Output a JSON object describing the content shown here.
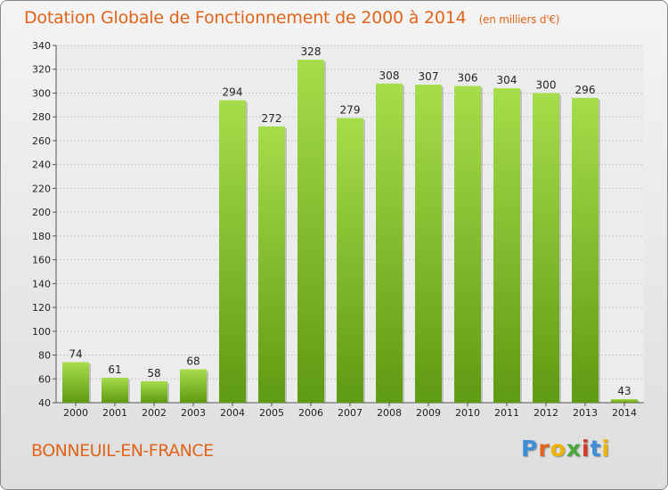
{
  "header": {
    "title": "Dotation Globale de Fonctionnement de 2000 à 2014",
    "unit": "(en milliers d'€)"
  },
  "commune": "BONNEUIL-EN-FRANCE",
  "logo": {
    "letters": [
      "P",
      "r",
      "o",
      "x",
      "i",
      "t",
      "i"
    ],
    "colors": [
      "#3b8fd8",
      "#e0641a",
      "#f0b400",
      "#4aa838",
      "#d23a2a",
      "#3b8fd8",
      "#f0b400"
    ]
  },
  "colors": {
    "bar_top": "#a6dd4a",
    "bar_bottom": "#5e9a12",
    "accent": "#e0641a"
  },
  "chart_data": {
    "type": "bar",
    "title": "Dotation Globale de Fonctionnement de 2000 à 2014",
    "subtitle": "(en milliers d'€)",
    "categories": [
      "2000",
      "2001",
      "2002",
      "2003",
      "2004",
      "2005",
      "2006",
      "2007",
      "2008",
      "2009",
      "2010",
      "2011",
      "2012",
      "2013",
      "2014"
    ],
    "values": [
      74,
      61,
      58,
      68,
      294,
      272,
      328,
      279,
      308,
      307,
      306,
      304,
      300,
      296,
      43
    ],
    "ylim": [
      40,
      340
    ],
    "yticks": [
      40,
      60,
      80,
      100,
      120,
      140,
      160,
      180,
      200,
      220,
      240,
      260,
      280,
      300,
      320,
      340
    ],
    "grid": true
  }
}
